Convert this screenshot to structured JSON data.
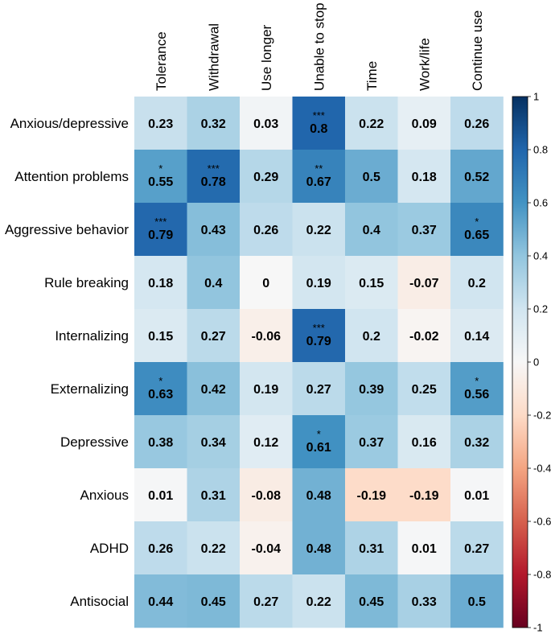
{
  "chart_data": {
    "type": "heatmap",
    "columns": [
      "Tolerance",
      "Withdrawal",
      "Use longer",
      "Unable to stop",
      "Time",
      "Work/life",
      "Continue use"
    ],
    "rows": [
      "Anxious/depressive",
      "Attention problems",
      "Aggressive behavior",
      "Rule breaking",
      "Internalizing",
      "Externalizing",
      "Depressive",
      "Anxious",
      "ADHD",
      "Antisocial"
    ],
    "values": [
      [
        0.23,
        0.32,
        0.03,
        0.8,
        0.22,
        0.09,
        0.26
      ],
      [
        0.55,
        0.78,
        0.29,
        0.67,
        0.5,
        0.18,
        0.52
      ],
      [
        0.79,
        0.43,
        0.26,
        0.22,
        0.4,
        0.37,
        0.65
      ],
      [
        0.18,
        0.4,
        0,
        0.19,
        0.15,
        -0.07,
        0.2
      ],
      [
        0.15,
        0.27,
        -0.06,
        0.79,
        0.2,
        -0.02,
        0.14
      ],
      [
        0.63,
        0.42,
        0.19,
        0.27,
        0.39,
        0.25,
        0.56
      ],
      [
        0.38,
        0.34,
        0.12,
        0.61,
        0.37,
        0.16,
        0.32
      ],
      [
        0.01,
        0.31,
        -0.08,
        0.48,
        -0.19,
        -0.19,
        0.01
      ],
      [
        0.26,
        0.22,
        -0.04,
        0.48,
        0.31,
        0.01,
        0.27
      ],
      [
        0.44,
        0.45,
        0.27,
        0.22,
        0.45,
        0.33,
        0.5
      ]
    ],
    "labels": [
      [
        "0.23",
        "0.32",
        "0.03",
        "0.8",
        "0.22",
        "0.09",
        "0.26"
      ],
      [
        "0.55",
        "0.78",
        "0.29",
        "0.67",
        "0.5",
        "0.18",
        "0.52"
      ],
      [
        "0.79",
        "0.43",
        "0.26",
        "0.22",
        "0.4",
        "0.37",
        "0.65"
      ],
      [
        "0.18",
        "0.4",
        "0",
        "0.19",
        "0.15",
        "-0.07",
        "0.2"
      ],
      [
        "0.15",
        "0.27",
        "-0.06",
        "0.79",
        "0.2",
        "-0.02",
        "0.14"
      ],
      [
        "0.63",
        "0.42",
        "0.19",
        "0.27",
        "0.39",
        "0.25",
        "0.56"
      ],
      [
        "0.38",
        "0.34",
        "0.12",
        "0.61",
        "0.37",
        "0.16",
        "0.32"
      ],
      [
        "0.01",
        "0.31",
        "-0.08",
        "0.48",
        "-0.19",
        "-0.19",
        "0.01"
      ],
      [
        "0.26",
        "0.22",
        "-0.04",
        "0.48",
        "0.31",
        "0.01",
        "0.27"
      ],
      [
        "0.44",
        "0.45",
        "0.27",
        "0.22",
        "0.45",
        "0.33",
        "0.5"
      ]
    ],
    "significance": [
      [
        "",
        "",
        "",
        "***",
        "",
        "",
        ""
      ],
      [
        "*",
        "***",
        "",
        "**",
        "",
        "",
        ""
      ],
      [
        "***",
        "",
        "",
        "",
        "",
        "",
        "*"
      ],
      [
        "",
        "",
        "",
        "",
        "",
        "",
        ""
      ],
      [
        "",
        "",
        "",
        "***",
        "",
        "",
        ""
      ],
      [
        "*",
        "",
        "",
        "",
        "",
        "",
        "*"
      ],
      [
        "",
        "",
        "",
        "*",
        "",
        "",
        ""
      ],
      [
        "",
        "",
        "",
        "",
        "",
        "",
        ""
      ],
      [
        "",
        "",
        "",
        "",
        "",
        "",
        ""
      ],
      [
        "",
        "",
        "",
        "",
        "",
        "",
        ""
      ]
    ],
    "colorbar": {
      "range": [
        -1,
        1
      ],
      "ticks": [
        1,
        0.8,
        0.6,
        0.4,
        0.2,
        0,
        -0.2,
        -0.4,
        -0.6,
        -0.8,
        -1
      ],
      "tick_labels": [
        "1",
        "0.8",
        "0.6",
        "0.4",
        "0.2",
        "0",
        "-0.2",
        "-0.4",
        "-0.6",
        "-0.8",
        "-1"
      ],
      "colormap": "RdBu",
      "low_color": "#67001f",
      "mid_color": "#ffffff",
      "high_color": "#053061"
    }
  }
}
